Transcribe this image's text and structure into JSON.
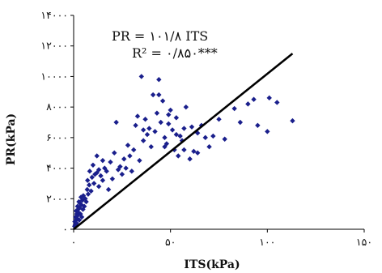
{
  "chart_data": {
    "type": "scatter",
    "title": "",
    "xlabel": "ITS(kPa)",
    "ylabel": "PR(kPa)",
    "xlim": [
      0,
      150
    ],
    "ylim": [
      0,
      14000
    ],
    "x_ticks": [
      0,
      50,
      100,
      150
    ],
    "y_ticks": [
      0,
      2000,
      4000,
      6000,
      8000,
      10000,
      12000,
      14000
    ],
    "x_tick_labels": [
      "۰",
      "۵۰",
      "۱۰۰",
      "۱۵۰"
    ],
    "y_tick_labels": [
      "۰",
      "۲۰۰۰",
      "۴۰۰۰",
      "۶۰۰۰",
      "۸۰۰۰",
      "۱۰۰۰۰",
      "۱۲۰۰۰",
      "۱۴۰۰۰"
    ],
    "grid": false,
    "legend": "none",
    "marker_color": "#1a1f8c",
    "line_color": "#000000",
    "annotations": {
      "equation": "PR = ۱۰۱/۸ ITS",
      "r_squared": "R² = ۰/۸۵۰***"
    },
    "trendline": {
      "slope": 101.8,
      "x_range": [
        0,
        113
      ]
    },
    "series": [
      {
        "x": [
          0.5,
          0.6,
          0.8,
          1.0,
          1.2,
          1.3,
          1.5,
          1.6,
          1.8,
          2.0,
          2.1,
          2.3,
          2.5,
          2.7,
          2.9,
          3.0,
          3.3,
          3.5,
          3.8,
          4.0,
          4.2,
          4.5,
          4.8,
          5.0,
          5.5,
          6.0,
          6.5,
          7.0,
          7.2,
          7.5,
          8.0,
          8.3,
          9.0,
          9.5,
          10.0,
          10.5,
          11.0,
          12.0,
          13.0,
          14.0,
          15.0,
          16.0,
          17.0,
          18.0,
          19.0,
          20.0,
          21.0,
          22.0,
          23.0,
          24.0,
          25.0,
          26.0,
          27.0,
          28.0,
          29.0,
          30.0,
          31.0,
          32.0,
          33.0,
          34.0,
          35.0,
          36.0,
          37.0,
          38.0,
          39.0,
          40.0,
          41.0,
          42.0,
          43.0,
          44.0,
          45.0,
          46.0,
          47.0,
          48.0,
          49.0,
          50.0,
          51.0,
          52.0,
          53.0,
          54.0,
          55.0,
          56.0,
          57.0,
          58.0,
          60.0,
          62.0,
          64.0,
          66.0,
          68.0,
          70.0,
          72.0,
          75.0,
          78.0,
          83.0,
          86.0,
          90.0,
          93.0,
          95.0,
          100.0,
          101.0,
          105.0,
          113.0,
          13.0,
          15.0,
          12.0,
          47.0,
          53.0,
          44.0,
          36.0,
          57.0,
          61.0,
          64.0,
          49.0
        ],
        "y": [
          200,
          500,
          300,
          800,
          600,
          1200,
          400,
          1000,
          700,
          1500,
          900,
          1300,
          1100,
          1800,
          600,
          1400,
          1700,
          1000,
          2100,
          1600,
          800,
          1900,
          1300,
          2200,
          1500,
          2000,
          1800,
          2600,
          3200,
          2300,
          2900,
          3800,
          2500,
          3400,
          4200,
          3000,
          3600,
          4800,
          2800,
          3500,
          3200,
          4000,
          3800,
          2600,
          4400,
          3300,
          5000,
          7000,
          3900,
          4100,
          3600,
          4600,
          4000,
          5500,
          4800,
          3800,
          5200,
          6800,
          7400,
          4500,
          10000,
          5800,
          7200,
          6200,
          6600,
          5400,
          8800,
          6400,
          7600,
          9800,
          7000,
          8400,
          6000,
          5600,
          6900,
          7800,
          6500,
          5200,
          7300,
          4800,
          6100,
          5800,
          6600,
          8000,
          4600,
          5100,
          6300,
          6800,
          6000,
          5400,
          6100,
          7200,
          5900,
          7900,
          7000,
          8200,
          8500,
          6800,
          6400,
          8600,
          8300,
          7100,
          3900,
          4500,
          3700,
          5400,
          6200,
          8800,
          6500,
          5200,
          6700,
          5000,
          7500
        ]
      }
    ]
  }
}
